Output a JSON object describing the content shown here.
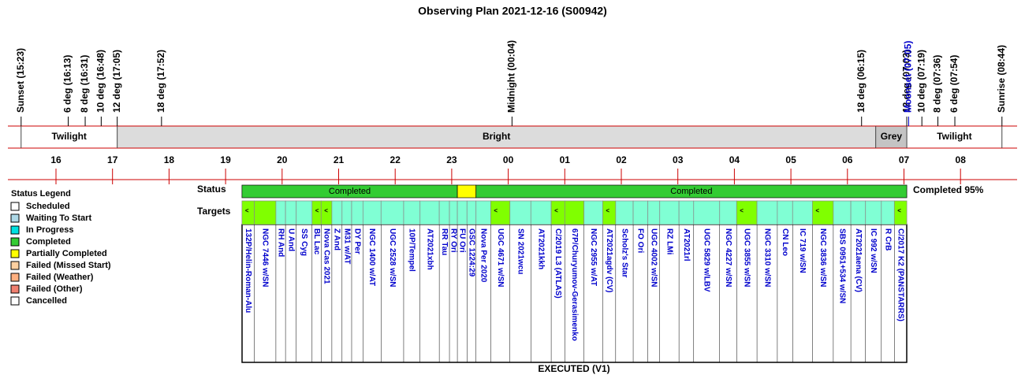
{
  "title": "Observing Plan 2021-12-16 (S00942)",
  "events": [
    {
      "label": "Sunset (15:23)"
    },
    {
      "label": "6 deg (16:13)"
    },
    {
      "label": "8 deg (16:31)"
    },
    {
      "label": "10 deg (16:48)"
    },
    {
      "label": "12 deg (17:05)"
    },
    {
      "label": "18 deg (17:52)"
    },
    {
      "label": "Midnight (00:04)"
    },
    {
      "label": "18 deg (06:15)"
    },
    {
      "label": "12 deg (07:03)"
    },
    {
      "label": "Moonset (07:05)",
      "color": "#0000cc"
    },
    {
      "label": "10 deg (07:19)"
    },
    {
      "label": "8 deg (07:36)"
    },
    {
      "label": "6 deg (07:54)"
    },
    {
      "label": "Sunrise (08:44)"
    }
  ],
  "bands": [
    {
      "label": "Twilight",
      "start": 15.383,
      "end": 17.083,
      "color": "#ffffff"
    },
    {
      "label": "Bright",
      "start": 17.083,
      "end": 30.5,
      "color": "#dcdcdc"
    },
    {
      "label": "Grey",
      "start": 30.5,
      "end": 31.05,
      "color": "#c4c4c4"
    },
    {
      "label": "Twilight",
      "start": 31.05,
      "end": 32.733,
      "color": "#ffffff"
    }
  ],
  "hour_ticks": [
    {
      "value": 16,
      "label": "16"
    },
    {
      "value": 17,
      "label": "17"
    },
    {
      "value": 18,
      "label": "18"
    },
    {
      "value": 19,
      "label": "19"
    },
    {
      "value": 20,
      "label": "20"
    },
    {
      "value": 21,
      "label": "21"
    },
    {
      "value": 22,
      "label": "22"
    },
    {
      "value": 23,
      "label": "23"
    },
    {
      "value": 24,
      "label": "00"
    },
    {
      "value": 25,
      "label": "01"
    },
    {
      "value": 26,
      "label": "02"
    },
    {
      "value": 27,
      "label": "03"
    },
    {
      "value": 28,
      "label": "04"
    },
    {
      "value": 29,
      "label": "05"
    },
    {
      "value": 30,
      "label": "06"
    },
    {
      "value": 31,
      "label": "07"
    },
    {
      "value": 32,
      "label": "08"
    }
  ],
  "legend": {
    "title": "Status Legend",
    "items": [
      {
        "label": "Scheduled",
        "color": "#ffffff"
      },
      {
        "label": "Waiting To Start",
        "color": "#add8e6"
      },
      {
        "label": "In Progress",
        "color": "#00e0e0"
      },
      {
        "label": "Completed",
        "color": "#33cc33"
      },
      {
        "label": "Partially Completed",
        "color": "#ffff00"
      },
      {
        "label": "Failed (Missed Start)",
        "color": "#ffd0a0"
      },
      {
        "label": "Failed (Weather)",
        "color": "#ffb080"
      },
      {
        "label": "Failed (Other)",
        "color": "#f08070"
      },
      {
        "label": "Cancelled",
        "color": "#ffffff"
      }
    ]
  },
  "status": {
    "label": "Status",
    "summary": "Completed 95%",
    "segments": [
      {
        "label": "Completed",
        "start": 19.29,
        "end": 23.1,
        "color": "#33cc33"
      },
      {
        "start": 23.1,
        "end": 23.43,
        "color": "#ffff00"
      },
      {
        "label": "Completed",
        "start": 23.43,
        "end": 31.05,
        "color": "#33cc33"
      }
    ]
  },
  "targets": {
    "label": "Targets",
    "footer": "EXECUTED (V1)",
    "items": [
      {
        "name": "132P/Helin-Roman-Alu",
        "start": 19.29,
        "end": 19.51,
        "color": "#80ff00",
        "flag": "<"
      },
      {
        "name": "NGC 7446 w/SN",
        "start": 19.51,
        "end": 19.89,
        "color": "#80ff00"
      },
      {
        "name": "RH And",
        "start": 19.89,
        "end": 20.06,
        "color": "#80ffd4"
      },
      {
        "name": "U And",
        "start": 20.06,
        "end": 20.25,
        "color": "#80ffd4"
      },
      {
        "name": "SS Cyg",
        "start": 20.25,
        "end": 20.53,
        "color": "#80ffd4"
      },
      {
        "name": "BL Lac",
        "start": 20.53,
        "end": 20.69,
        "color": "#80ff00",
        "flag": "<"
      },
      {
        "name": "Nova Cas 2021",
        "start": 20.69,
        "end": 20.88,
        "color": "#80ff00",
        "flag": "<"
      },
      {
        "name": "Z And",
        "start": 20.88,
        "end": 21.06,
        "color": "#80ffd4"
      },
      {
        "name": "M31 w/AT",
        "start": 21.06,
        "end": 21.23,
        "color": "#80ffd4"
      },
      {
        "name": "DY Per",
        "start": 21.23,
        "end": 21.43,
        "color": "#80ffd4"
      },
      {
        "name": "NGC 1400 w/AT",
        "start": 21.43,
        "end": 21.75,
        "color": "#80ffd4"
      },
      {
        "name": "UGC 2528 w/SN",
        "start": 21.75,
        "end": 22.15,
        "color": "#80ffd4"
      },
      {
        "name": "10P/Tempel",
        "start": 22.15,
        "end": 22.44,
        "color": "#80ffd4"
      },
      {
        "name": "AT2021xbh",
        "start": 22.44,
        "end": 22.78,
        "color": "#80ffd4"
      },
      {
        "name": "RR Tau",
        "start": 22.78,
        "end": 22.96,
        "color": "#80ffd4"
      },
      {
        "name": "RY Ori",
        "start": 22.96,
        "end": 23.1,
        "color": "#80ffd4"
      },
      {
        "name": "FU Ori",
        "start": 23.1,
        "end": 23.27,
        "color": "#80ffd4"
      },
      {
        "name": "GSC 1224:29",
        "start": 23.27,
        "end": 23.43,
        "color": "#80ffd4"
      },
      {
        "name": "Nova Per 2020",
        "start": 23.43,
        "end": 23.69,
        "color": "#80ffd4"
      },
      {
        "name": "UGC 4671 w/SN",
        "start": 23.69,
        "end": 24.03,
        "color": "#80ff00",
        "flag": "<"
      },
      {
        "name": "SN 2021wcu",
        "start": 24.03,
        "end": 24.4,
        "color": "#80ffd4"
      },
      {
        "name": "AT2021kkh",
        "start": 24.4,
        "end": 24.76,
        "color": "#80ffd4"
      },
      {
        "name": "C/2019 L3 (ATLAS)",
        "start": 24.76,
        "end": 25.0,
        "color": "#80ff00",
        "flag": "<"
      },
      {
        "name": "67P/Churyumov-Gerasimenko",
        "start": 25.0,
        "end": 25.34,
        "color": "#80ff00"
      },
      {
        "name": "NGC 2955 w/AT",
        "start": 25.34,
        "end": 25.67,
        "color": "#80ffd4"
      },
      {
        "name": "AT2021agdv (CV)",
        "start": 25.67,
        "end": 25.9,
        "color": "#80ff00",
        "flag": "<"
      },
      {
        "name": "Scholz's Star",
        "start": 25.9,
        "end": 26.21,
        "color": "#80ffd4"
      },
      {
        "name": "FO Ori",
        "start": 26.21,
        "end": 26.47,
        "color": "#80ffd4"
      },
      {
        "name": "UGC 4002 w/SN",
        "start": 26.47,
        "end": 26.68,
        "color": "#80ffd4"
      },
      {
        "name": "RZ LMi",
        "start": 26.68,
        "end": 27.02,
        "color": "#80ffd4"
      },
      {
        "name": "AT2021rl",
        "start": 27.02,
        "end": 27.28,
        "color": "#80ffd4"
      },
      {
        "name": "UGC 5829 w/LBV",
        "start": 27.28,
        "end": 27.74,
        "color": "#80ffd4"
      },
      {
        "name": "NGC 4227 w/SN",
        "start": 27.74,
        "end": 28.04,
        "color": "#80ffd4"
      },
      {
        "name": "UGC 3855 w/SN",
        "start": 28.04,
        "end": 28.4,
        "color": "#80ff00",
        "flag": "<"
      },
      {
        "name": "NGC 3310 w/SN",
        "start": 28.4,
        "end": 28.76,
        "color": "#80ffd4"
      },
      {
        "name": "CN Leo",
        "start": 28.76,
        "end": 29.03,
        "color": "#80ffd4"
      },
      {
        "name": "IC 719 w/SN",
        "start": 29.03,
        "end": 29.38,
        "color": "#80ffd4"
      },
      {
        "name": "NGC 3836 w/SN",
        "start": 29.38,
        "end": 29.75,
        "color": "#80ff00",
        "flag": "<"
      },
      {
        "name": "SBS 0951+534 w/SN",
        "start": 29.75,
        "end": 30.06,
        "color": "#80ffd4"
      },
      {
        "name": "AT2021aena (CV)",
        "start": 30.06,
        "end": 30.32,
        "color": "#80ffd4"
      },
      {
        "name": "IC 992 w/SN",
        "start": 30.32,
        "end": 30.6,
        "color": "#80ffd4"
      },
      {
        "name": "R CrB",
        "start": 30.6,
        "end": 30.83,
        "color": "#80ffd4"
      },
      {
        "name": "C/2017 K2 (PANSTARRS)",
        "start": 30.83,
        "end": 31.05,
        "color": "#80ff00",
        "flag": "<"
      }
    ]
  }
}
